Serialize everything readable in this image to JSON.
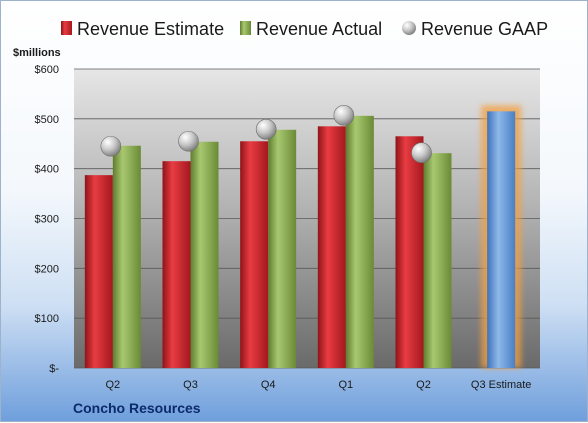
{
  "colors": {
    "estimate": "#cc2229",
    "actual": "#86a84a",
    "gaap": "#b8b8b8",
    "estimate_bar": "#6a9bd6",
    "highlight": "#f4a040",
    "brand": "#0d2a6b"
  },
  "brand": "Concho Resources",
  "chart_data": {
    "type": "bar",
    "unit_label": "$millions",
    "categories": [
      "Q2",
      "Q3",
      "Q4",
      "Q1",
      "Q2",
      "Q3 Estimate"
    ],
    "y_ticks": [
      "$-",
      "$100",
      "$200",
      "$300",
      "$400",
      "$500",
      "$600"
    ],
    "ylim": [
      0,
      600
    ],
    "grid": true,
    "legend_position": "top",
    "series": [
      {
        "name": "Revenue Estimate",
        "marker": "bar",
        "values": [
          387,
          415,
          455,
          485,
          465,
          null
        ]
      },
      {
        "name": "Revenue Actual",
        "marker": "bar",
        "values": [
          446,
          454,
          478,
          506,
          431,
          null
        ]
      },
      {
        "name": "Revenue GAAP",
        "marker": "bubble",
        "values": [
          445,
          455,
          479,
          507,
          432,
          null
        ]
      }
    ],
    "projection": {
      "category": "Q3 Estimate",
      "value": 515
    }
  }
}
